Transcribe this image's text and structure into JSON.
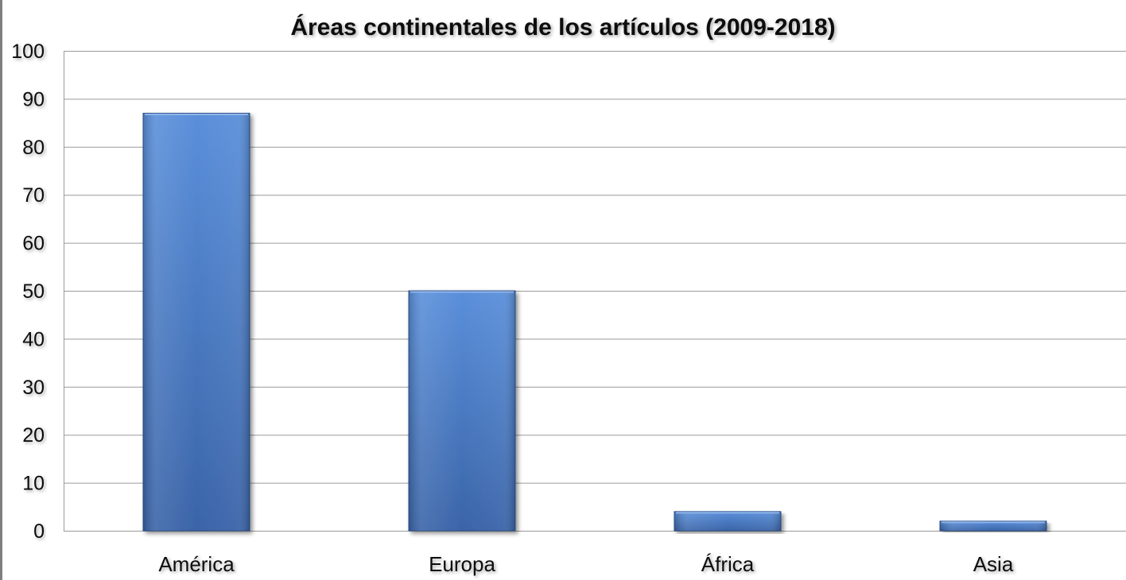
{
  "chart_data": {
    "type": "bar",
    "title": "Áreas continentales de los artículos (2009-2018)",
    "categories": [
      "América",
      "Europa",
      "África",
      "Asia"
    ],
    "values": [
      87,
      50,
      4,
      2
    ],
    "xlabel": "",
    "ylabel": "",
    "ylim": [
      0,
      100
    ],
    "yticks": [
      0,
      10,
      20,
      30,
      40,
      50,
      60,
      70,
      80,
      90,
      100
    ],
    "grid": true,
    "legend": "none",
    "colors": {
      "bar_top": "#5a8fda",
      "bar_bottom": "#3a64a8",
      "bar_edge": "#2f5590",
      "grid": "#9a9a9a"
    }
  }
}
